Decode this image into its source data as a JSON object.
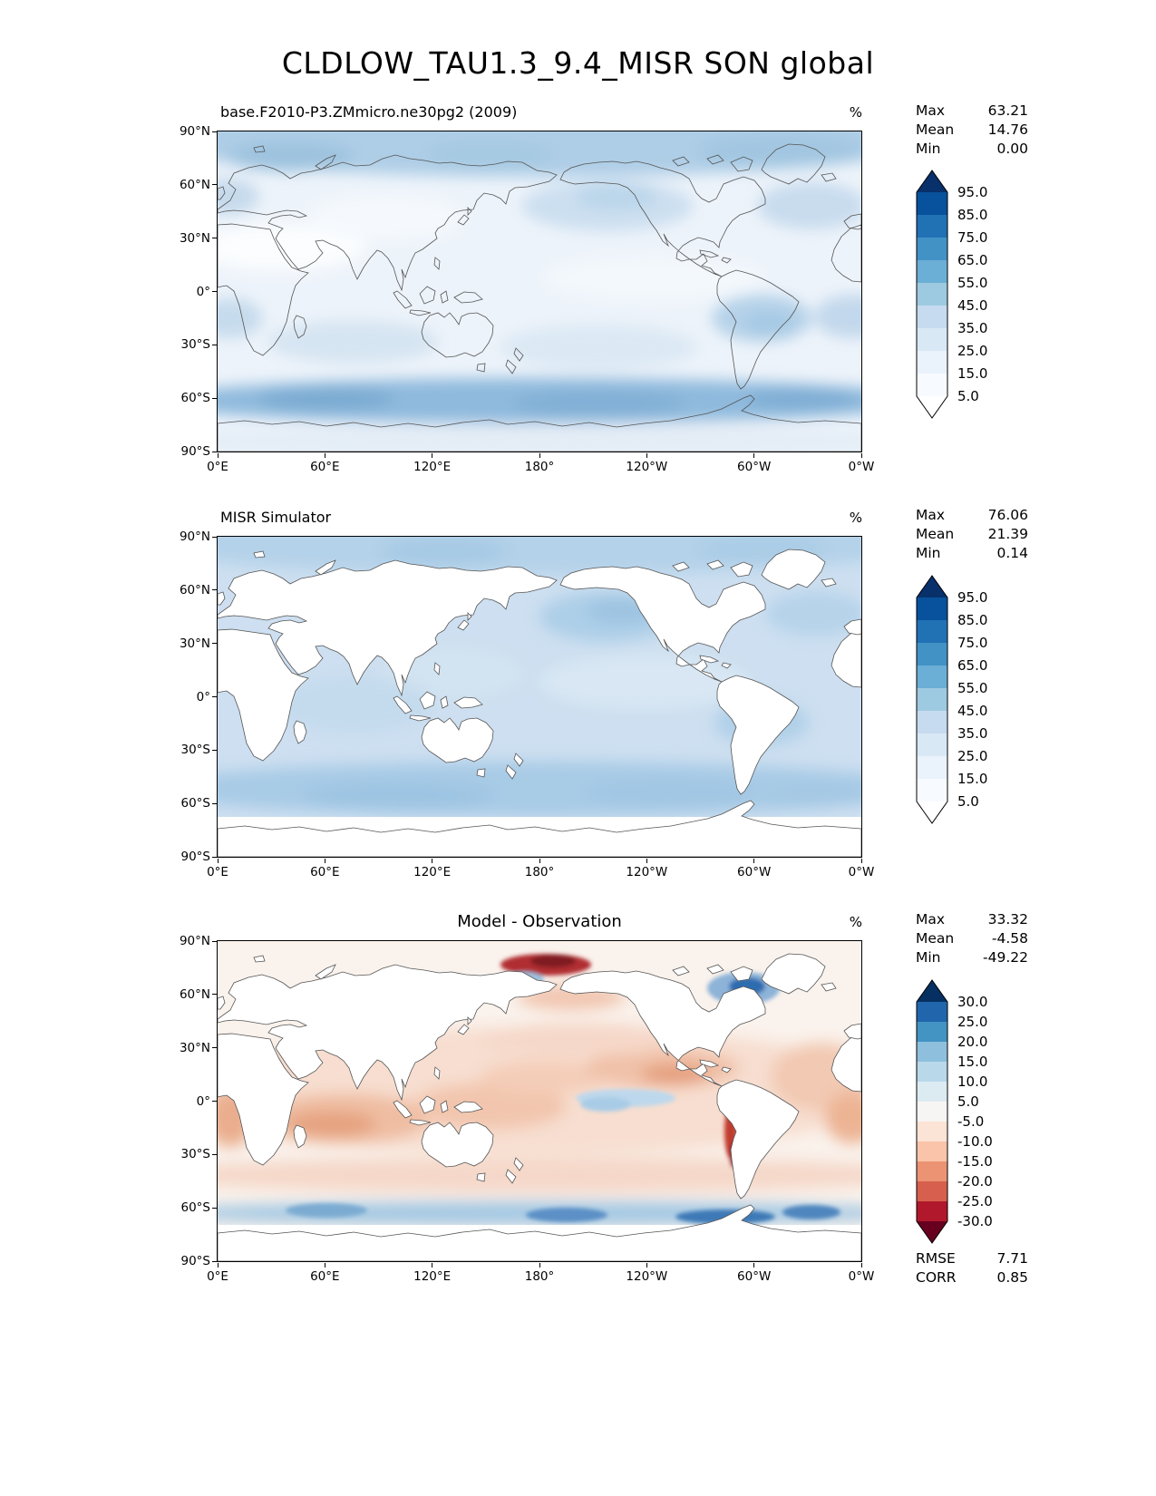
{
  "title": "CLDLOW_TAU1.3_9.4_MISR SON global",
  "axes": {
    "x_ticks": [
      "0°E",
      "60°E",
      "120°E",
      "180°",
      "120°W",
      "60°W",
      "0°W"
    ],
    "y_ticks": [
      "90°N",
      "60°N",
      "30°N",
      "0°",
      "30°S",
      "60°S",
      "90°S"
    ]
  },
  "panels": [
    {
      "id": "model",
      "title": "base.F2010-P3.ZMmicro.ne30pg2 (2009)",
      "unit": "%",
      "stats": [
        {
          "label": "Max",
          "value": "63.21"
        },
        {
          "label": "Mean",
          "value": "14.76"
        },
        {
          "label": "Min",
          "value": "0.00"
        }
      ],
      "colorbar": {
        "ticks": [
          "95.0",
          "85.0",
          "75.0",
          "65.0",
          "55.0",
          "45.0",
          "35.0",
          "25.0",
          "15.0",
          "5.0"
        ],
        "arrow_top": "#08306b",
        "cells": [
          "#08519c",
          "#2171b5",
          "#4292c6",
          "#6baed6",
          "#9ecae1",
          "#c6dbef",
          "#d9e8f5",
          "#eaf2fb",
          "#f7fbff"
        ],
        "arrow_bottom": "#ffffff"
      }
    },
    {
      "id": "obs",
      "title": "MISR Simulator",
      "unit": "%",
      "stats": [
        {
          "label": "Max",
          "value": "76.06"
        },
        {
          "label": "Mean",
          "value": "21.39"
        },
        {
          "label": "Min",
          "value": "0.14"
        }
      ],
      "colorbar": {
        "ticks": [
          "95.0",
          "85.0",
          "75.0",
          "65.0",
          "55.0",
          "45.0",
          "35.0",
          "25.0",
          "15.0",
          "5.0"
        ],
        "arrow_top": "#08306b",
        "cells": [
          "#08519c",
          "#2171b5",
          "#4292c6",
          "#6baed6",
          "#9ecae1",
          "#c6dbef",
          "#d9e8f5",
          "#eaf2fb",
          "#f7fbff"
        ],
        "arrow_bottom": "#ffffff"
      }
    },
    {
      "id": "diff",
      "title": "Model - Observation",
      "unit": "%",
      "stats": [
        {
          "label": "Max",
          "value": "33.32"
        },
        {
          "label": "Mean",
          "value": "-4.58"
        },
        {
          "label": "Min",
          "value": "-49.22"
        }
      ],
      "colorbar": {
        "ticks": [
          "30.0",
          "25.0",
          "20.0",
          "15.0",
          "10.0",
          "5.0",
          "-5.0",
          "-10.0",
          "-15.0",
          "-20.0",
          "-25.0",
          "-30.0"
        ],
        "arrow_top": "#053061",
        "cells": [
          "#2166ac",
          "#4393c3",
          "#8ec0dd",
          "#b9d8ea",
          "#dcebf2",
          "#f7f5f3",
          "#fbe3d5",
          "#f9c4a9",
          "#ec9374",
          "#d6604d",
          "#b2182b"
        ],
        "arrow_bottom": "#67001f"
      },
      "extra_stats": [
        {
          "label": "RMSE",
          "value": "7.71"
        },
        {
          "label": "CORR",
          "value": "0.85"
        }
      ]
    }
  ],
  "chart_data": [
    {
      "type": "heatmap",
      "subtype": "global-latlon-map",
      "projection": "Pacific-centered cylindrical, 0°E to 0°W",
      "variable": "CLDLOW_TAU1.3_9.4_MISR",
      "season": "SON",
      "region": "global",
      "title": "base.F2010-P3.ZMmicro.ne30pg2 (2009)",
      "units": "%",
      "stats": {
        "max": 63.21,
        "mean": 14.76,
        "min": 0.0
      },
      "colormap": "Blues",
      "colorbar_levels": [
        5.0,
        15.0,
        25.0,
        35.0,
        45.0,
        55.0,
        65.0,
        75.0,
        85.0,
        95.0
      ],
      "x_ticks_deg": [
        0,
        60,
        120,
        180,
        240,
        300,
        360
      ],
      "y_ticks_deg": [
        90,
        60,
        30,
        0,
        -30,
        -60,
        -90
      ],
      "legend_position": "right"
    },
    {
      "type": "heatmap",
      "subtype": "global-latlon-map",
      "title": "MISR Simulator",
      "units": "%",
      "stats": {
        "max": 76.06,
        "mean": 21.39,
        "min": 0.14
      },
      "colormap": "Blues",
      "colorbar_levels": [
        5.0,
        15.0,
        25.0,
        35.0,
        45.0,
        55.0,
        65.0,
        75.0,
        85.0,
        95.0
      ],
      "legend_position": "right"
    },
    {
      "type": "heatmap",
      "subtype": "global-latlon-map",
      "title": "Model - Observation",
      "units": "%",
      "stats": {
        "max": 33.32,
        "mean": -4.58,
        "min": -49.22
      },
      "colormap": "RdBu",
      "colorbar_levels": [
        -30.0,
        -25.0,
        -20.0,
        -15.0,
        -10.0,
        -5.0,
        5.0,
        10.0,
        15.0,
        20.0,
        25.0,
        30.0
      ],
      "rmse": 7.71,
      "corr": 0.85,
      "legend_position": "right"
    }
  ]
}
